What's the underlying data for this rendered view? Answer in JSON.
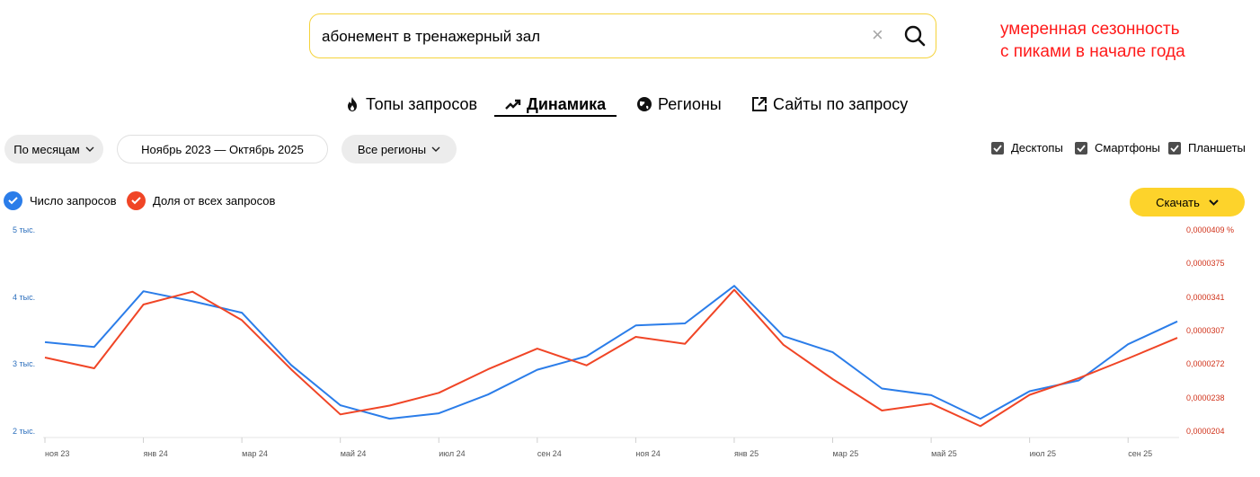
{
  "search": {
    "query": "абонемент в тренажерный зал",
    "clear_glyph": "×"
  },
  "annotation": {
    "line1": "умеренная сезонность",
    "line2": "с пиками в начале года"
  },
  "tabs": [
    {
      "label": "Топы запросов",
      "icon": "flame-icon"
    },
    {
      "label": "Динамика",
      "icon": "trend-icon",
      "active": true
    },
    {
      "label": "Регионы",
      "icon": "globe-icon"
    },
    {
      "label": "Сайты по запросу",
      "icon": "external-link-icon"
    }
  ],
  "filters": {
    "period_type": "По месяцам",
    "date_range": "Ноябрь 2023 — Октябрь 2025",
    "region": "Все регионы"
  },
  "devices": [
    {
      "label": "Десктопы",
      "checked": true
    },
    {
      "label": "Смартфоны",
      "checked": true
    },
    {
      "label": "Планшеты",
      "checked": true
    }
  ],
  "legend": [
    {
      "label": "Число запросов",
      "color": "#2b7de9",
      "checked": true
    },
    {
      "label": "Доля от всех запросов",
      "color": "#f04526",
      "checked": true
    }
  ],
  "download": {
    "label": "Скачать"
  },
  "colors": {
    "series_count": "#2b7de9",
    "series_share": "#f04526",
    "accent": "#fdd32b"
  },
  "chart_data": {
    "type": "line",
    "x": [
      "ноя 23",
      "дек 23",
      "янв 24",
      "фев 24",
      "мар 24",
      "апр 24",
      "май 24",
      "июн 24",
      "июл 24",
      "авг 24",
      "сен 24",
      "окт 24",
      "ноя 24",
      "дек 24",
      "янв 25",
      "фев 25",
      "мар 25",
      "апр 25",
      "май 25",
      "июн 25",
      "июл 25",
      "авг 25",
      "сен 25",
      "окт 25"
    ],
    "x_tick_labels": [
      "ноя 23",
      "янв 24",
      "мар 24",
      "май 24",
      "июл 24",
      "сен 24",
      "ноя 24",
      "янв 25",
      "мар 25",
      "май 25",
      "июл 25",
      "сен 25"
    ],
    "y_left_ticks": [
      "2 тыс.",
      "3 тыс.",
      "4 тыс.",
      "5 тыс."
    ],
    "y_left_range": [
      2000,
      5000
    ],
    "y_right_ticks": [
      "0,0000204",
      "0,0000238",
      "0,0000272",
      "0,0000307",
      "0,0000341",
      "0,0000375",
      "0,0000409 %"
    ],
    "y_right_range": [
      2.04e-05,
      4.09e-05
    ],
    "series": [
      {
        "name": "Число запросов",
        "axis": "left",
        "values": [
          3340,
          3270,
          4100,
          3950,
          3780,
          3000,
          2400,
          2200,
          2280,
          2560,
          2930,
          3130,
          3590,
          3620,
          4180,
          3430,
          3190,
          2650,
          2550,
          2200,
          2610,
          2770,
          3310,
          3650
        ]
      },
      {
        "name": "Доля от всех запросов",
        "axis": "right",
        "values": [
          2.8e-05,
          2.69e-05,
          3.34e-05,
          3.47e-05,
          3.18e-05,
          2.68e-05,
          2.22e-05,
          2.31e-05,
          2.44e-05,
          2.68e-05,
          2.89e-05,
          2.72e-05,
          3.01e-05,
          2.94e-05,
          3.49e-05,
          2.93e-05,
          2.58e-05,
          2.26e-05,
          2.33e-05,
          2.1e-05,
          2.42e-05,
          2.59e-05,
          2.79e-05,
          3e-05
        ]
      }
    ]
  }
}
